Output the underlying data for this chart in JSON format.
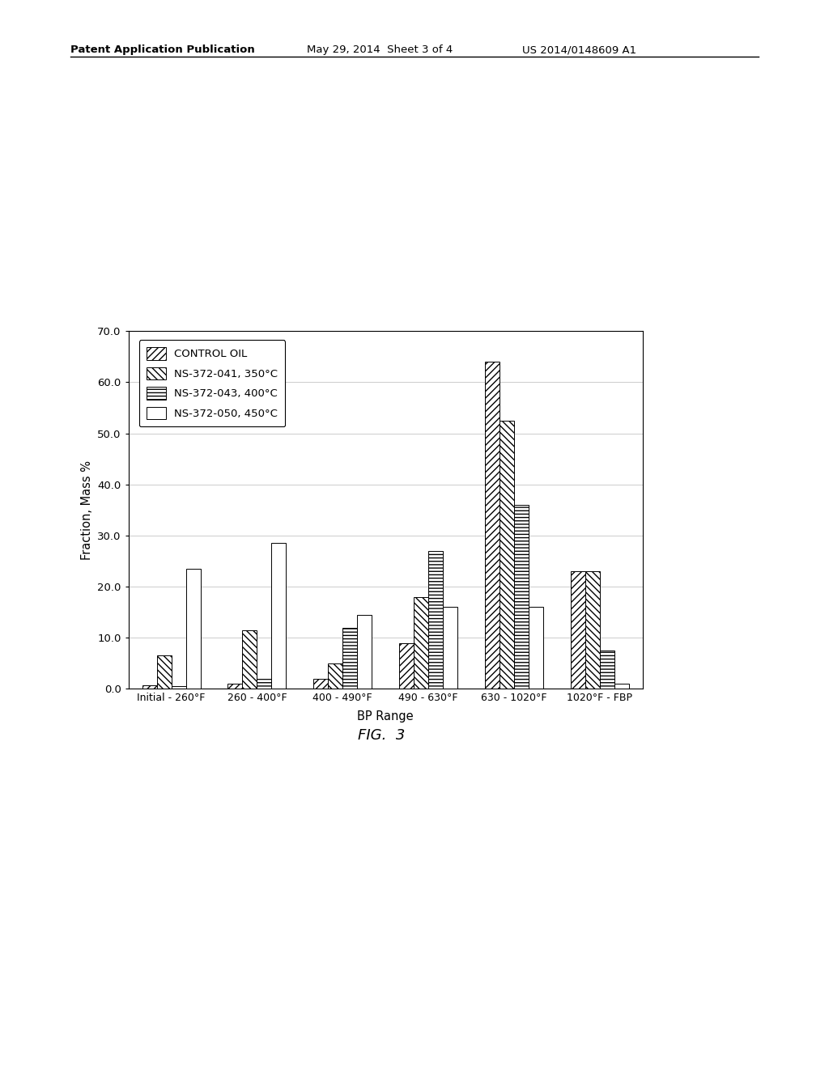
{
  "categories": [
    "Initial - 260°F",
    "260 - 400°F",
    "400 - 490°F",
    "490 - 630°F",
    "630 - 1020°F",
    "1020°F - FBP"
  ],
  "series": [
    {
      "label": "CONTROL OIL",
      "values": [
        0.7,
        1.0,
        2.0,
        9.0,
        64.0,
        23.0
      ],
      "hatch": "////",
      "facecolor": "white",
      "edgecolor": "black"
    },
    {
      "label": "NS-372-041, 350°C",
      "values": [
        6.5,
        11.5,
        5.0,
        18.0,
        52.5,
        23.0
      ],
      "hatch": "\\\\\\\\",
      "facecolor": "white",
      "edgecolor": "black"
    },
    {
      "label": "NS-372-043, 400°C",
      "values": [
        0.5,
        2.0,
        12.0,
        27.0,
        36.0,
        7.5
      ],
      "hatch": "----",
      "facecolor": "white",
      "edgecolor": "black"
    },
    {
      "label": "NS-372-050, 450°C",
      "values": [
        23.5,
        28.5,
        14.5,
        16.0,
        16.0,
        1.0
      ],
      "hatch": "",
      "facecolor": "white",
      "edgecolor": "black"
    }
  ],
  "ylabel": "Fraction, Mass %",
  "xlabel": "BP Range",
  "ylim": [
    0.0,
    70.0
  ],
  "yticks": [
    0.0,
    10.0,
    20.0,
    30.0,
    40.0,
    50.0,
    60.0,
    70.0
  ],
  "fig_caption": "FIG.  3",
  "header_left": "Patent Application Publication",
  "header_center": "May 29, 2014  Sheet 3 of 4",
  "header_right": "US 2014/0148609 A1",
  "background_color": "white"
}
